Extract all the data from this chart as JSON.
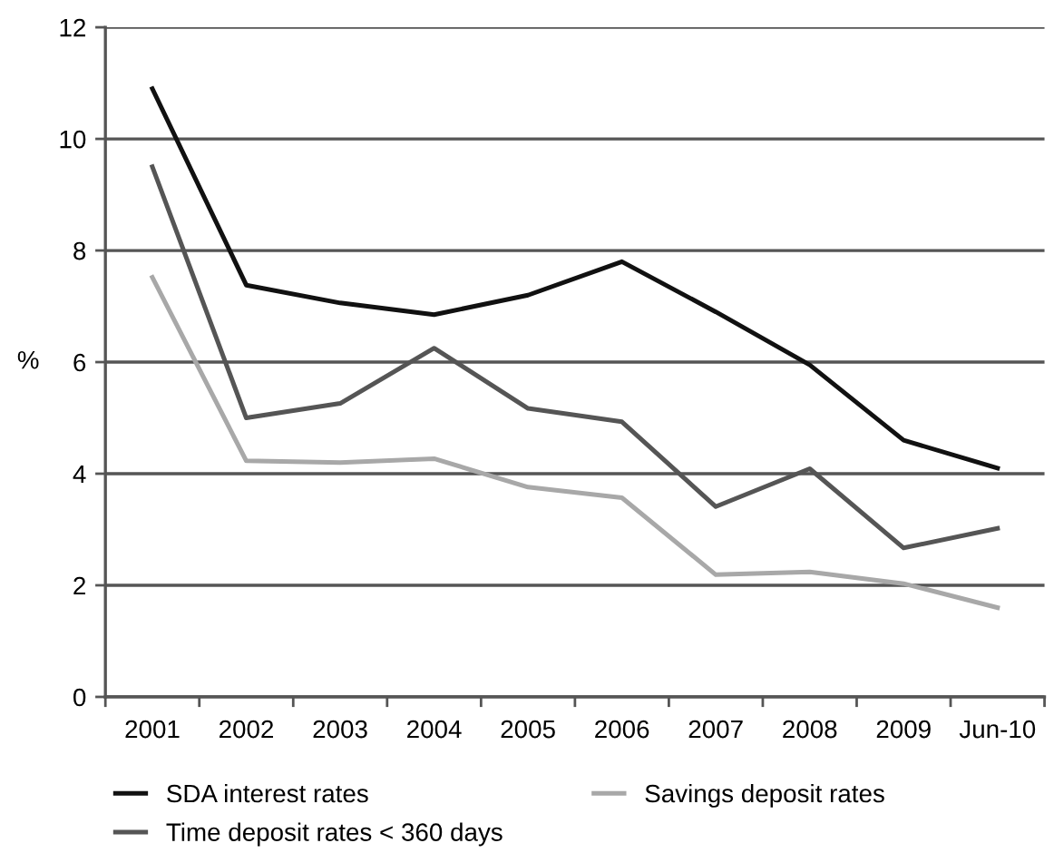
{
  "chart_data": {
    "type": "line",
    "ylabel": "%",
    "categories": [
      "2001",
      "2002",
      "2003",
      "2004",
      "2005",
      "2006",
      "2007",
      "2008",
      "2009",
      "Jun-10"
    ],
    "series": [
      {
        "name": "SDA interest rates",
        "color": "#111111",
        "values": [
          10.9,
          7.38,
          7.06,
          6.85,
          7.2,
          7.8,
          6.9,
          5.95,
          4.6,
          4.1
        ]
      },
      {
        "name": "Time deposit rates < 360 days",
        "color": "#555555",
        "values": [
          9.5,
          5.0,
          5.26,
          6.25,
          5.17,
          4.93,
          3.41,
          4.09,
          2.67,
          3.02
        ]
      },
      {
        "name": "Savings deposit rates",
        "color": "#a8a8a8",
        "values": [
          7.52,
          4.23,
          4.2,
          4.27,
          3.76,
          3.57,
          2.19,
          2.24,
          2.03,
          1.6
        ]
      }
    ],
    "ylim": [
      0,
      12
    ],
    "yticks": [
      0,
      2,
      4,
      6,
      8,
      10,
      12
    ],
    "grid": "y",
    "legend": "bottom",
    "marker": "none",
    "line_style": "solid"
  }
}
